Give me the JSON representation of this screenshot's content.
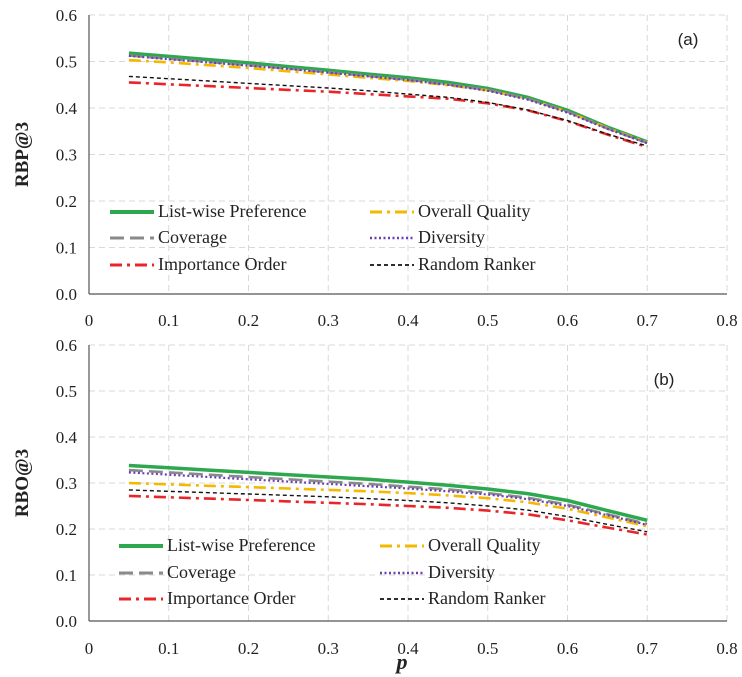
{
  "chart_data": [
    {
      "type": "line",
      "panel_label": "(a)",
      "ylabel": "RBP@3",
      "xlabel": "",
      "xlim": [
        0,
        0.8
      ],
      "ylim": [
        0,
        0.6
      ],
      "xticks": [
        "0",
        "0.1",
        "0.2",
        "0.3",
        "0.4",
        "0.5",
        "0.6",
        "0.7",
        "0.8"
      ],
      "yticks": [
        "0.0",
        "0.1",
        "0.2",
        "0.3",
        "0.4",
        "0.5",
        "0.6"
      ],
      "grid": true,
      "legend_position": "bottom-left",
      "x": [
        0.05,
        0.1,
        0.15,
        0.2,
        0.25,
        0.3,
        0.35,
        0.4,
        0.45,
        0.5,
        0.55,
        0.6,
        0.65,
        0.7
      ],
      "series": [
        {
          "name": "List-wise Preference",
          "color": "#2ea84f",
          "dash": "solid",
          "values": [
            0.518,
            0.511,
            0.504,
            0.497,
            0.489,
            0.481,
            0.473,
            0.465,
            0.455,
            0.442,
            0.423,
            0.395,
            0.359,
            0.327
          ]
        },
        {
          "name": "Overall Quality",
          "color": "#f5b800",
          "dash": "dashdot",
          "values": [
            0.503,
            0.498,
            0.492,
            0.486,
            0.479,
            0.472,
            0.465,
            0.458,
            0.449,
            0.438,
            0.42,
            0.392,
            0.357,
            0.326
          ]
        },
        {
          "name": "Coverage",
          "color": "#8a8a8a",
          "dash": "dash",
          "values": [
            0.513,
            0.506,
            0.499,
            0.492,
            0.485,
            0.477,
            0.469,
            0.461,
            0.451,
            0.439,
            0.42,
            0.392,
            0.356,
            0.325
          ]
        },
        {
          "name": "Diversity",
          "color": "#6a3fb5",
          "dash": "dot",
          "values": [
            0.512,
            0.505,
            0.498,
            0.491,
            0.484,
            0.476,
            0.468,
            0.46,
            0.45,
            0.437,
            0.418,
            0.39,
            0.355,
            0.324
          ]
        },
        {
          "name": "Importance Order",
          "color": "#e8262a",
          "dash": "dashdot",
          "values": [
            0.455,
            0.451,
            0.447,
            0.443,
            0.439,
            0.435,
            0.43,
            0.425,
            0.42,
            0.41,
            0.395,
            0.372,
            0.343,
            0.316
          ]
        },
        {
          "name": "Random Ranker",
          "color": "#111111",
          "dash": "shortdash",
          "values": [
            0.468,
            0.463,
            0.458,
            0.453,
            0.448,
            0.443,
            0.437,
            0.43,
            0.423,
            0.412,
            0.396,
            0.373,
            0.344,
            0.318
          ]
        }
      ]
    },
    {
      "type": "line",
      "panel_label": "(b)",
      "ylabel": "RBO@3",
      "xlabel": "p",
      "xlim": [
        0,
        0.8
      ],
      "ylim": [
        0,
        0.6
      ],
      "xticks": [
        "0",
        "0.1",
        "0.2",
        "0.3",
        "0.4",
        "0.5",
        "0.6",
        "0.7",
        "0.8"
      ],
      "yticks": [
        "0.0",
        "0.1",
        "0.2",
        "0.3",
        "0.4",
        "0.5",
        "0.6"
      ],
      "grid": true,
      "legend_position": "bottom-left",
      "x": [
        0.05,
        0.1,
        0.15,
        0.2,
        0.25,
        0.3,
        0.35,
        0.4,
        0.45,
        0.5,
        0.55,
        0.6,
        0.65,
        0.7
      ],
      "series": [
        {
          "name": "List-wise Preference",
          "color": "#2ea84f",
          "dash": "solid",
          "values": [
            0.338,
            0.333,
            0.328,
            0.323,
            0.318,
            0.313,
            0.308,
            0.302,
            0.295,
            0.287,
            0.277,
            0.262,
            0.24,
            0.219
          ]
        },
        {
          "name": "Overall Quality",
          "color": "#f5b800",
          "dash": "dashdot",
          "values": [
            0.3,
            0.297,
            0.294,
            0.291,
            0.288,
            0.285,
            0.282,
            0.278,
            0.273,
            0.267,
            0.258,
            0.244,
            0.225,
            0.206
          ]
        },
        {
          "name": "Coverage",
          "color": "#8a8a8a",
          "dash": "dash",
          "values": [
            0.328,
            0.323,
            0.318,
            0.313,
            0.308,
            0.303,
            0.298,
            0.292,
            0.286,
            0.278,
            0.268,
            0.253,
            0.232,
            0.211
          ]
        },
        {
          "name": "Diversity",
          "color": "#6a3fb5",
          "dash": "dot",
          "values": [
            0.323,
            0.318,
            0.313,
            0.308,
            0.303,
            0.298,
            0.293,
            0.288,
            0.282,
            0.275,
            0.265,
            0.25,
            0.23,
            0.209
          ]
        },
        {
          "name": "Importance Order",
          "color": "#e8262a",
          "dash": "dashdot",
          "values": [
            0.272,
            0.269,
            0.266,
            0.263,
            0.26,
            0.257,
            0.254,
            0.25,
            0.246,
            0.24,
            0.232,
            0.219,
            0.203,
            0.188
          ]
        },
        {
          "name": "Random Ranker",
          "color": "#111111",
          "dash": "shortdash",
          "values": [
            0.285,
            0.282,
            0.279,
            0.276,
            0.273,
            0.27,
            0.266,
            0.262,
            0.257,
            0.25,
            0.241,
            0.227,
            0.21,
            0.194
          ]
        }
      ]
    }
  ]
}
